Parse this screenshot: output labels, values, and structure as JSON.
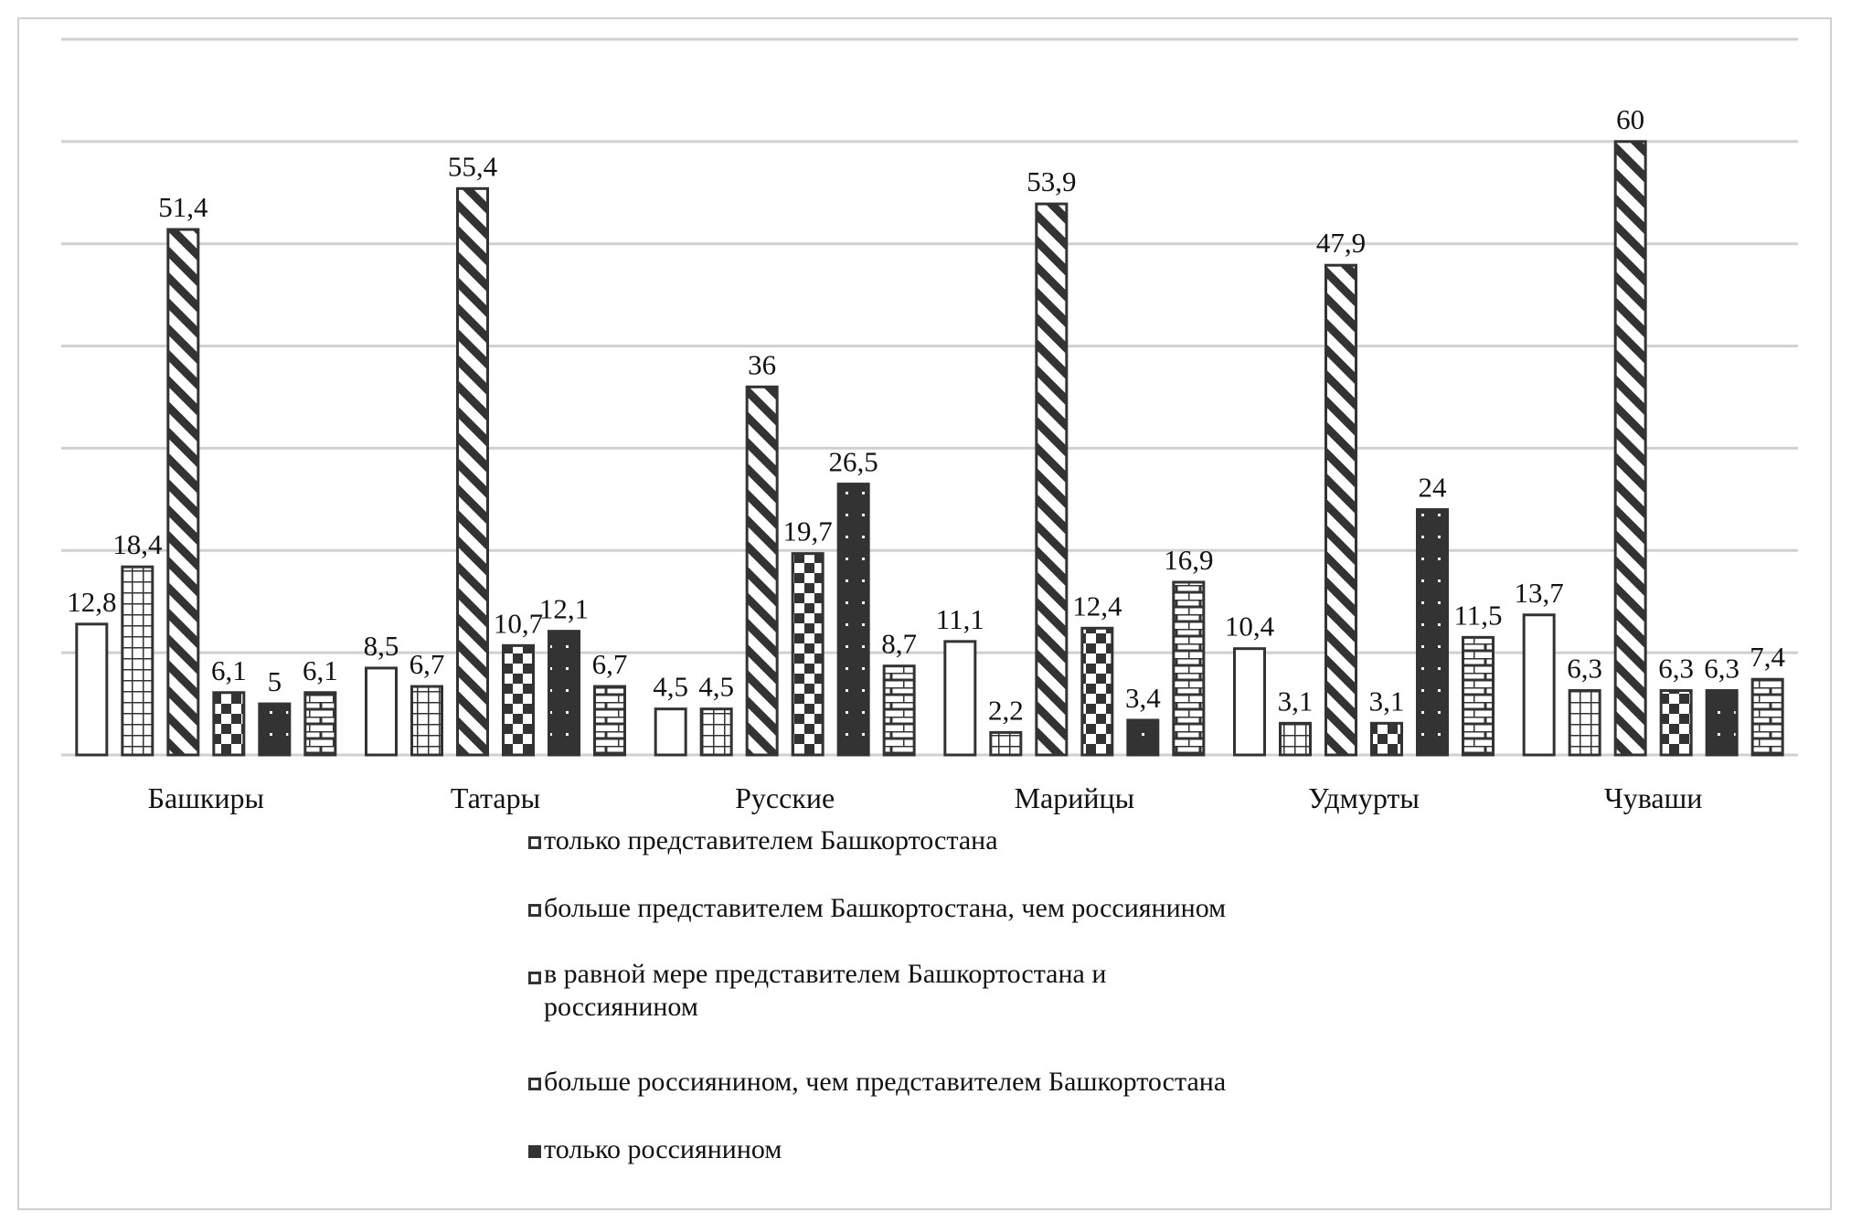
{
  "chart_data": {
    "type": "bar",
    "title": "",
    "xlabel": "",
    "ylabel": "",
    "ylim": [
      0,
      70
    ],
    "ytick_step": 10,
    "grid": true,
    "legend_placement": "bottom",
    "categories": [
      "Башкиры",
      "Татары",
      "Русские",
      "Марийцы",
      "Удмурты",
      "Чуваши"
    ],
    "series": [
      {
        "name": "только представителем Башкортостана",
        "pattern": "white",
        "values": [
          12.8,
          8.5,
          4.5,
          11.1,
          10.4,
          13.7
        ],
        "labels": [
          "12,8",
          "8,5",
          "4,5",
          "11,1",
          "10,4",
          "13,7"
        ]
      },
      {
        "name": "больше представителем Башкортостана, чем россиянином",
        "pattern": "grid",
        "values": [
          18.4,
          6.7,
          4.5,
          2.2,
          3.1,
          6.3
        ],
        "labels": [
          "18,4",
          "6,7",
          "4,5",
          "2,2",
          "3,1",
          "6,3"
        ]
      },
      {
        "name": "в равной мере представителем Башкортостана и россиянином",
        "pattern": "diagonal",
        "values": [
          51.4,
          55.4,
          36,
          53.9,
          47.9,
          60
        ],
        "labels": [
          "51,4",
          "55,4",
          "36",
          "53,9",
          "47,9",
          "60"
        ]
      },
      {
        "name": "больше россиянином, чем представителем Башкортостана",
        "pattern": "checker",
        "values": [
          6.1,
          10.7,
          19.7,
          12.4,
          3.1,
          6.3
        ],
        "labels": [
          "6,1",
          "10,7",
          "19,7",
          "12,4",
          "3,1",
          "6,3"
        ]
      },
      {
        "name": "только россиянином",
        "pattern": "dots",
        "values": [
          5,
          12.1,
          26.5,
          3.4,
          24,
          6.3
        ],
        "labels": [
          "5",
          "12,1",
          "26,5",
          "3,4",
          "24",
          "6,3"
        ]
      },
      {
        "name": "",
        "pattern": "brick",
        "values": [
          6.1,
          6.7,
          8.7,
          16.9,
          11.5,
          7.4
        ],
        "labels": [
          "6,1",
          "6,7",
          "8,7",
          "16,9",
          "11,5",
          "7,4"
        ]
      }
    ],
    "legend": [
      {
        "label": "только представителем Башкортостана",
        "pattern": "white"
      },
      {
        "label": "больше представителем Башкортостана, чем россиянином",
        "pattern": "grid"
      },
      {
        "label": "в равной мере представителем Башкортостана и россиянином",
        "pattern": "diagonal"
      },
      {
        "label": "больше россиянином, чем представителем Башкортостана",
        "pattern": "checker"
      },
      {
        "label": "только россиянином",
        "pattern": "dots"
      }
    ]
  },
  "colors": {
    "bar_stroke": "#333333",
    "grid": "#d0d0d0",
    "text": "#111111"
  }
}
